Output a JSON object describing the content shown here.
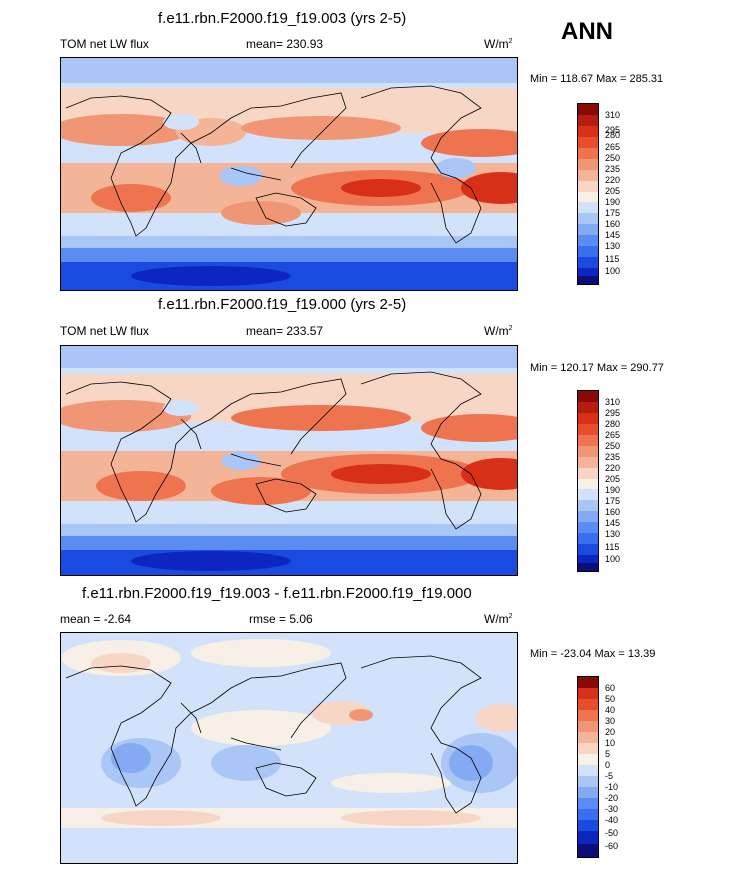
{
  "season": "ANN",
  "colors": {
    "abs": [
      "#0e0e7a",
      "#0d26c0",
      "#1a4be0",
      "#3a6ef0",
      "#5a8cf4",
      "#84aaf4",
      "#aac6f6",
      "#d2e2fa",
      "#f8f0e6",
      "#f8d6c6",
      "#f4b498",
      "#f19674",
      "#ee7450",
      "#e84e2c",
      "#d83018",
      "#b81c0c",
      "#880a04"
    ],
    "diff": [
      "#0e0e7a",
      "#0d26c0",
      "#1a4be0",
      "#3a6ef0",
      "#5a8cf4",
      "#84aaf4",
      "#aac6f6",
      "#d2e2fa",
      "#f8f0e6",
      "#f8d6c6",
      "#f4b498",
      "#f19674",
      "#ee7450",
      "#e84e2c",
      "#d83018",
      "#880a04"
    ],
    "coast": "#000000"
  },
  "panels": [
    {
      "title": "f.e11.rbn.F2000.f19_f19.003 (yrs 2-5)",
      "left_label": "TOM net LW flux",
      "center_label": "mean= 230.93",
      "units_base": "W/m",
      "units_exp": "2",
      "minmax": "Min = 118.67 Max = 285.31"
    },
    {
      "title": "f.e11.rbn.F2000.f19_f19.000 (yrs 2-5)",
      "left_label": "TOM net LW flux",
      "center_label": "mean= 233.57",
      "units_base": "W/m",
      "units_exp": "2",
      "minmax": "Min = 120.17 Max = 290.77"
    },
    {
      "title": "f.e11.rbn.F2000.f19_f19.003 - f.e11.rbn.F2000.f19_f19.000",
      "left_label": "mean =  -2.64",
      "center_label": "rmse =   5.06",
      "units_base": "W/m",
      "units_exp": "2",
      "minmax": "Min = -23.04 Max =  13.39"
    }
  ],
  "chart_data": [
    {
      "type": "heatmap",
      "title": "f.e11.rbn.F2000.f19_f19.003 (yrs 2-5)",
      "variable": "TOM net LW flux",
      "units": "W/m2",
      "mean": 230.93,
      "min": 118.67,
      "max": 285.31,
      "colorbar_levels": [
        "100",
        "115",
        "130",
        "145",
        "160",
        "175",
        "190",
        "205",
        "220",
        "235",
        "250",
        "265",
        "280",
        "295",
        "310"
      ],
      "colorbar_levels_desc": [
        "310",
        "295",
        "280",
        "265",
        "250",
        "235",
        "220",
        "205",
        "190",
        "175",
        "160",
        "145",
        "130",
        "115",
        "100"
      ]
    },
    {
      "type": "heatmap",
      "title": "f.e11.rbn.F2000.f19_f19.000 (yrs 2-5)",
      "variable": "TOM net LW flux",
      "units": "W/m2",
      "mean": 233.57,
      "min": 120.17,
      "max": 290.77,
      "colorbar_levels": [
        "100",
        "115",
        "130",
        "145",
        "160",
        "175",
        "190",
        "205",
        "220",
        "235",
        "250",
        "265",
        "280",
        "295",
        "310"
      ],
      "colorbar_levels_desc": [
        "310",
        "295",
        "280",
        "265",
        "250",
        "235",
        "220",
        "205",
        "190",
        "175",
        "160",
        "145",
        "130",
        "115",
        "100"
      ]
    },
    {
      "type": "heatmap",
      "title": "f.e11.rbn.F2000.f19_f19.003 - f.e11.rbn.F2000.f19_f19.000",
      "units": "W/m2",
      "mean": -2.64,
      "rmse": 5.06,
      "min": -23.04,
      "max": 13.39,
      "colorbar_levels_desc": [
        "60",
        "50",
        "40",
        "30",
        "20",
        "10",
        "5",
        "0",
        "-5",
        "-10",
        "-20",
        "-30",
        "-40",
        "-50",
        "-60"
      ]
    }
  ]
}
